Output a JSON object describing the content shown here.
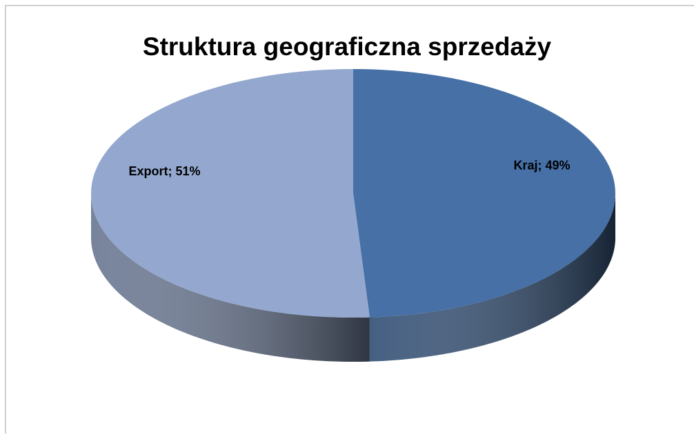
{
  "chart_data": {
    "type": "pie",
    "title": "Struktura geograficzna sprzedaży",
    "categories": [
      "Kraj",
      "Export"
    ],
    "values": [
      49,
      51
    ],
    "value_labels": [
      "Kraj; 49%",
      "Export; 51%"
    ],
    "colors": [
      "#4670a6",
      "#94a8cf"
    ]
  }
}
